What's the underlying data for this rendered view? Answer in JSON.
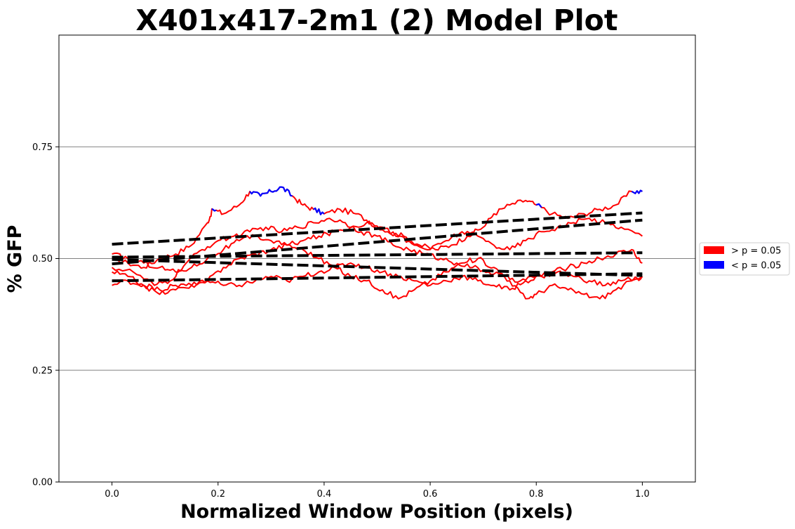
{
  "chart_data": {
    "type": "line",
    "title": "X401x417-2m1 (2) Model Plot",
    "xlabel": "Normalized Window Position (pixels)",
    "ylabel": "% GFP",
    "xlim": [
      -0.1,
      1.1
    ],
    "ylim": [
      0.0,
      1.0
    ],
    "x_ticks": [
      0.0,
      0.2,
      0.4,
      0.6,
      0.8,
      1.0
    ],
    "x_tick_labels": [
      "0.0",
      "0.2",
      "0.4",
      "0.6",
      "0.8",
      "1.0"
    ],
    "y_ticks": [
      0.0,
      0.25,
      0.5,
      0.75
    ],
    "y_tick_labels": [
      "0.00",
      "0.25",
      "0.50",
      "0.75"
    ],
    "grid": "horizontal",
    "legend_placement": "right, outside plot",
    "colors": {
      "not_significant": "#ff0000",
      "significant": "#0000ff",
      "fit": "#000000",
      "grid": "#808080"
    },
    "legend": [
      {
        "label": "> p = 0.05",
        "color": "#ff0000"
      },
      {
        "label": "< p = 0.05",
        "color": "#0000ff"
      }
    ],
    "series": [
      {
        "style": "trace",
        "points": [
          [
            0.0,
            0.5
          ],
          [
            0.03,
            0.49
          ],
          [
            0.06,
            0.48
          ],
          [
            0.09,
            0.5
          ],
          [
            0.12,
            0.51
          ],
          [
            0.15,
            0.53
          ],
          [
            0.18,
            0.58
          ],
          [
            0.19,
            0.61
          ],
          [
            0.21,
            0.6
          ],
          [
            0.24,
            0.62
          ],
          [
            0.26,
            0.65
          ],
          [
            0.28,
            0.64
          ],
          [
            0.3,
            0.65
          ],
          [
            0.32,
            0.66
          ],
          [
            0.34,
            0.64
          ],
          [
            0.36,
            0.62
          ],
          [
            0.38,
            0.61
          ],
          [
            0.4,
            0.6
          ],
          [
            0.43,
            0.61
          ],
          [
            0.46,
            0.6
          ],
          [
            0.49,
            0.58
          ],
          [
            0.52,
            0.56
          ],
          [
            0.55,
            0.55
          ],
          [
            0.58,
            0.53
          ],
          [
            0.61,
            0.52
          ],
          [
            0.64,
            0.53
          ],
          [
            0.67,
            0.55
          ],
          [
            0.7,
            0.57
          ],
          [
            0.72,
            0.6
          ],
          [
            0.75,
            0.62
          ],
          [
            0.78,
            0.63
          ],
          [
            0.8,
            0.62
          ],
          [
            0.83,
            0.6
          ],
          [
            0.86,
            0.59
          ],
          [
            0.89,
            0.6
          ],
          [
            0.92,
            0.61
          ],
          [
            0.95,
            0.62
          ],
          [
            0.98,
            0.65
          ],
          [
            1.0,
            0.65
          ]
        ],
        "significant_ranges": [
          [
            0.19,
            0.195
          ],
          [
            0.26,
            0.34
          ],
          [
            0.38,
            0.4
          ],
          [
            0.8,
            0.81
          ],
          [
            0.98,
            1.0
          ]
        ]
      },
      {
        "style": "trace",
        "points": [
          [
            0.0,
            0.48
          ],
          [
            0.04,
            0.47
          ],
          [
            0.08,
            0.44
          ],
          [
            0.11,
            0.45
          ],
          [
            0.14,
            0.49
          ],
          [
            0.17,
            0.52
          ],
          [
            0.2,
            0.54
          ],
          [
            0.23,
            0.55
          ],
          [
            0.26,
            0.56
          ],
          [
            0.29,
            0.57
          ],
          [
            0.32,
            0.56
          ],
          [
            0.35,
            0.57
          ],
          [
            0.38,
            0.58
          ],
          [
            0.41,
            0.59
          ],
          [
            0.44,
            0.58
          ],
          [
            0.47,
            0.56
          ],
          [
            0.5,
            0.55
          ],
          [
            0.53,
            0.53
          ],
          [
            0.56,
            0.52
          ],
          [
            0.59,
            0.51
          ],
          [
            0.62,
            0.5
          ],
          [
            0.65,
            0.49
          ],
          [
            0.68,
            0.48
          ],
          [
            0.71,
            0.47
          ],
          [
            0.74,
            0.46
          ],
          [
            0.77,
            0.45
          ],
          [
            0.8,
            0.46
          ],
          [
            0.83,
            0.47
          ],
          [
            0.86,
            0.48
          ],
          [
            0.89,
            0.49
          ],
          [
            0.92,
            0.5
          ],
          [
            0.95,
            0.51
          ],
          [
            0.98,
            0.52
          ],
          [
            1.0,
            0.49
          ]
        ],
        "significant_ranges": []
      },
      {
        "style": "trace",
        "points": [
          [
            0.0,
            0.47
          ],
          [
            0.03,
            0.46
          ],
          [
            0.06,
            0.44
          ],
          [
            0.09,
            0.43
          ],
          [
            0.12,
            0.44
          ],
          [
            0.15,
            0.44
          ],
          [
            0.18,
            0.45
          ],
          [
            0.21,
            0.48
          ],
          [
            0.24,
            0.5
          ],
          [
            0.27,
            0.51
          ],
          [
            0.3,
            0.52
          ],
          [
            0.33,
            0.53
          ],
          [
            0.36,
            0.52
          ],
          [
            0.39,
            0.5
          ],
          [
            0.42,
            0.48
          ],
          [
            0.45,
            0.46
          ],
          [
            0.48,
            0.45
          ],
          [
            0.51,
            0.43
          ],
          [
            0.54,
            0.41
          ],
          [
            0.57,
            0.43
          ],
          [
            0.6,
            0.45
          ],
          [
            0.63,
            0.47
          ],
          [
            0.66,
            0.49
          ],
          [
            0.69,
            0.5
          ],
          [
            0.72,
            0.48
          ],
          [
            0.75,
            0.45
          ],
          [
            0.78,
            0.41
          ],
          [
            0.8,
            0.42
          ],
          [
            0.83,
            0.44
          ],
          [
            0.86,
            0.43
          ],
          [
            0.89,
            0.42
          ],
          [
            0.92,
            0.41
          ],
          [
            0.95,
            0.43
          ],
          [
            0.98,
            0.45
          ],
          [
            1.0,
            0.46
          ]
        ],
        "significant_ranges": []
      },
      {
        "style": "trace",
        "points": [
          [
            0.0,
            0.44
          ],
          [
            0.03,
            0.45
          ],
          [
            0.06,
            0.44
          ],
          [
            0.09,
            0.42
          ],
          [
            0.12,
            0.43
          ],
          [
            0.15,
            0.44
          ],
          [
            0.18,
            0.45
          ],
          [
            0.21,
            0.44
          ],
          [
            0.24,
            0.44
          ],
          [
            0.27,
            0.45
          ],
          [
            0.3,
            0.46
          ],
          [
            0.33,
            0.45
          ],
          [
            0.36,
            0.46
          ],
          [
            0.39,
            0.47
          ],
          [
            0.42,
            0.48
          ],
          [
            0.45,
            0.49
          ],
          [
            0.48,
            0.48
          ],
          [
            0.51,
            0.47
          ],
          [
            0.54,
            0.46
          ],
          [
            0.57,
            0.45
          ],
          [
            0.6,
            0.44
          ],
          [
            0.63,
            0.45
          ],
          [
            0.66,
            0.46
          ],
          [
            0.69,
            0.45
          ],
          [
            0.72,
            0.44
          ],
          [
            0.75,
            0.43
          ],
          [
            0.78,
            0.45
          ],
          [
            0.81,
            0.46
          ],
          [
            0.84,
            0.47
          ],
          [
            0.87,
            0.46
          ],
          [
            0.9,
            0.45
          ],
          [
            0.93,
            0.44
          ],
          [
            0.96,
            0.45
          ],
          [
            1.0,
            0.46
          ]
        ],
        "significant_ranges": []
      },
      {
        "style": "trace",
        "points": [
          [
            0.0,
            0.51
          ],
          [
            0.03,
            0.5
          ],
          [
            0.06,
            0.49
          ],
          [
            0.09,
            0.48
          ],
          [
            0.12,
            0.47
          ],
          [
            0.15,
            0.48
          ],
          [
            0.18,
            0.5
          ],
          [
            0.21,
            0.52
          ],
          [
            0.24,
            0.54
          ],
          [
            0.27,
            0.55
          ],
          [
            0.3,
            0.54
          ],
          [
            0.33,
            0.53
          ],
          [
            0.36,
            0.54
          ],
          [
            0.39,
            0.55
          ],
          [
            0.42,
            0.56
          ],
          [
            0.45,
            0.57
          ],
          [
            0.48,
            0.58
          ],
          [
            0.51,
            0.57
          ],
          [
            0.54,
            0.55
          ],
          [
            0.57,
            0.53
          ],
          [
            0.6,
            0.52
          ],
          [
            0.63,
            0.54
          ],
          [
            0.66,
            0.56
          ],
          [
            0.69,
            0.55
          ],
          [
            0.72,
            0.53
          ],
          [
            0.75,
            0.52
          ],
          [
            0.78,
            0.54
          ],
          [
            0.81,
            0.56
          ],
          [
            0.84,
            0.57
          ],
          [
            0.87,
            0.58
          ],
          [
            0.9,
            0.59
          ],
          [
            0.93,
            0.58
          ],
          [
            0.96,
            0.57
          ],
          [
            1.0,
            0.55
          ]
        ],
        "significant_ranges": []
      },
      {
        "style": "fit",
        "points": [
          [
            0.0,
            0.532
          ],
          [
            1.0,
            0.602
          ]
        ]
      },
      {
        "style": "fit",
        "points": [
          [
            0.0,
            0.488
          ],
          [
            1.0,
            0.586
          ]
        ]
      },
      {
        "style": "fit",
        "points": [
          [
            0.0,
            0.503
          ],
          [
            1.0,
            0.513
          ]
        ]
      },
      {
        "style": "fit",
        "points": [
          [
            0.0,
            0.498
          ],
          [
            1.0,
            0.462
          ]
        ]
      },
      {
        "style": "fit",
        "points": [
          [
            0.0,
            0.45
          ],
          [
            1.0,
            0.466
          ]
        ]
      }
    ]
  }
}
